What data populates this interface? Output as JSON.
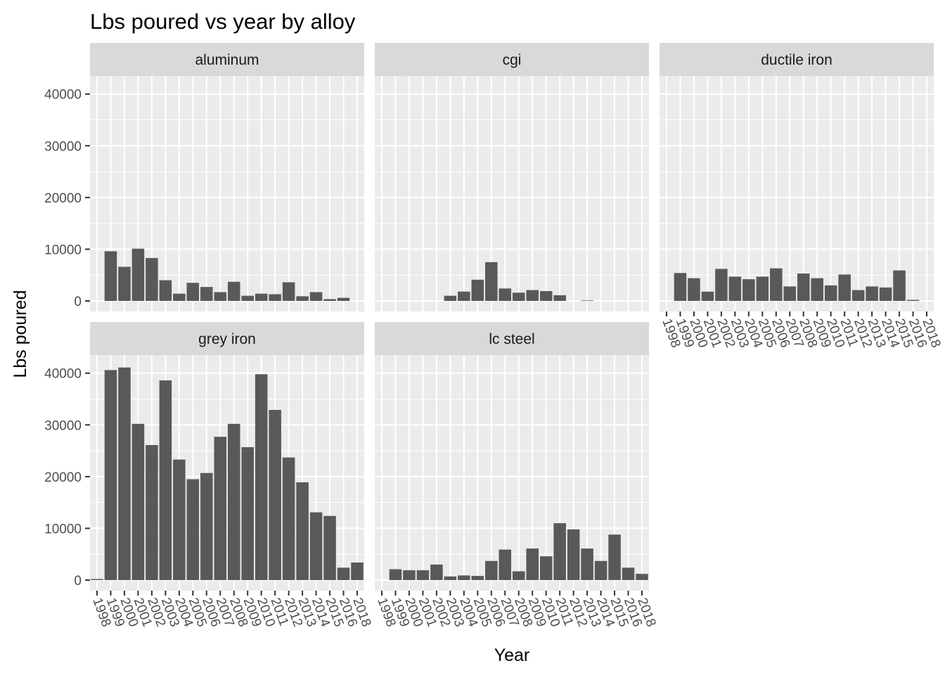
{
  "chart_data": {
    "type": "bar",
    "title": "Lbs poured vs year by alloy",
    "xlabel": "Year",
    "ylabel": "Lbs poured",
    "ylim": [
      0,
      44000
    ],
    "yticks": [
      "0",
      "10000",
      "20000",
      "30000",
      "40000"
    ],
    "categories": [
      "1998",
      "1999",
      "2000",
      "2001",
      "2002",
      "2003",
      "2004",
      "2005",
      "2006",
      "2007",
      "2008",
      "2009",
      "2010",
      "2011",
      "2012",
      "2013",
      "2014",
      "2015",
      "2016",
      "2018"
    ],
    "grid": true,
    "facets": [
      {
        "name": "aluminum",
        "values": [
          0,
          9600,
          6600,
          10100,
          8300,
          4000,
          1400,
          3500,
          2700,
          1700,
          3700,
          1000,
          1400,
          1300,
          3600,
          900,
          1700,
          350,
          600,
          0
        ]
      },
      {
        "name": "cgi",
        "values": [
          0,
          0,
          0,
          0,
          0,
          1000,
          1800,
          4100,
          7500,
          2400,
          1600,
          2100,
          1900,
          1100,
          0,
          100,
          0,
          0,
          0,
          0
        ]
      },
      {
        "name": "ductile iron",
        "values": [
          0,
          5400,
          4400,
          1800,
          6200,
          4700,
          4200,
          4700,
          6300,
          2800,
          5300,
          4400,
          3000,
          5100,
          2100,
          2800,
          2600,
          5900,
          200,
          0
        ]
      },
      {
        "name": "grey iron",
        "values": [
          200,
          40600,
          41100,
          30200,
          26100,
          38600,
          23300,
          19500,
          20700,
          27700,
          30200,
          25700,
          39800,
          32900,
          23700,
          18900,
          13100,
          12400,
          2400,
          3400
        ]
      },
      {
        "name": "lc steel",
        "values": [
          0,
          2100,
          1900,
          1900,
          3000,
          700,
          900,
          800,
          3700,
          5900,
          1700,
          6100,
          4600,
          11000,
          9800,
          6100,
          3700,
          8800,
          2400,
          1200
        ]
      }
    ]
  }
}
